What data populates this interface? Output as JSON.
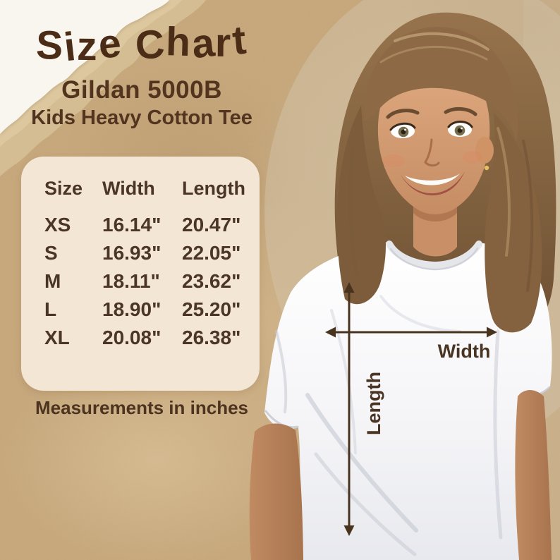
{
  "chart_data": {
    "type": "table",
    "title": "Size Chart",
    "product": "Gildan 5000B",
    "product_line2": "Kids Heavy Cotton Tee",
    "columns": [
      "Size",
      "Width",
      "Length"
    ],
    "rows": [
      [
        "XS",
        "16.14\"",
        "20.47\""
      ],
      [
        "S",
        "16.93\"",
        "22.05\""
      ],
      [
        "M",
        "18.11\"",
        "23.62\""
      ],
      [
        "L",
        "18.90\"",
        "25.20\""
      ],
      [
        "XL",
        "20.08\"",
        "26.38\""
      ]
    ],
    "note": "Measurements in inches",
    "units": "inches"
  },
  "diagram": {
    "width_label": "Width",
    "length_label": "Length"
  },
  "colors": {
    "kraft_background": "#c7a77a",
    "torn_paper_white": "#f9f6ef",
    "panel_cream": "#f3e6d5",
    "text_brown": "#4b3626",
    "title_brown": "#4a2c17",
    "arrow_brown": "#48331f",
    "shirt_white": "#f7f7fa"
  }
}
